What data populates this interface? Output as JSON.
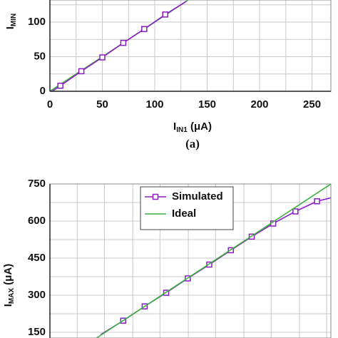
{
  "chart_data": [
    {
      "type": "line",
      "ylabel": {
        "main": "I",
        "sub": "MIN"
      },
      "xlabel": {
        "main": "I",
        "sub": "IN1",
        "unit": " (μA)"
      },
      "caption": "(a)",
      "xlim": [
        0,
        268
      ],
      "ylim": [
        0,
        132
      ],
      "xticks": [
        0,
        50,
        100,
        150,
        200,
        250
      ],
      "yticks": [
        0,
        50,
        100
      ],
      "xgrid_minor": [
        25,
        75,
        125,
        175,
        225
      ],
      "ygrid_minor": [
        25,
        75,
        125
      ],
      "grid": true,
      "series": [
        {
          "color": "#3cb043",
          "x": [
            0,
            132
          ],
          "values": [
            0,
            132
          ]
        },
        {
          "color": "#8a1cc4",
          "marker": "square",
          "x": [
            0,
            10,
            30,
            50,
            70,
            90,
            110,
            130
          ],
          "values": [
            -2,
            8,
            29,
            49,
            70,
            90,
            111,
            130
          ]
        }
      ]
    },
    {
      "type": "line",
      "ylabel": {
        "main": "I",
        "sub": "MAX",
        "unit": " (μA)"
      },
      "xlim": [
        0,
        268
      ],
      "ylim": [
        127,
        750
      ],
      "yticks": [
        150,
        300,
        450,
        600,
        750
      ],
      "xgrid_minor": [
        26,
        52,
        79,
        105,
        132,
        158,
        185,
        211,
        238,
        264
      ],
      "ygrid_minor": [
        225,
        375,
        525,
        675
      ],
      "grid": true,
      "legend": "top-center",
      "series": [
        {
          "name": "Simulated",
          "color": "#8a1cc4",
          "marker": "square",
          "x": [
            48.6,
            69.9,
            90.4,
            110.9,
            131.5,
            152,
            172.6,
            192.5,
            213,
            234.2,
            254.8,
            268
          ],
          "values": [
            141,
            197,
            255,
            310,
            368,
            424,
            482,
            537,
            590,
            639,
            680,
            694
          ]
        },
        {
          "name": "Ideal",
          "color": "#3cb043",
          "x": [
            44.5,
            268
          ],
          "values": [
            127,
            750
          ]
        }
      ]
    }
  ]
}
